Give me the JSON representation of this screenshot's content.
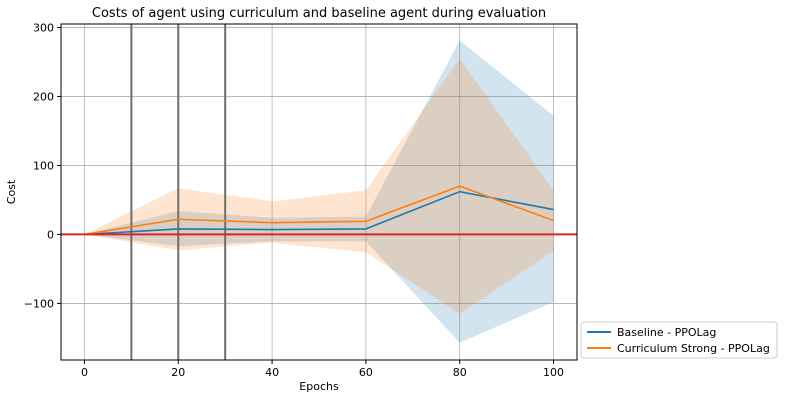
{
  "chart_data": {
    "type": "line",
    "title": "Costs of agent using curriculum and baseline agent during evaluation",
    "xlabel": "Epochs",
    "ylabel": "Cost",
    "xlim": [
      -5,
      105
    ],
    "ylim": [
      -182,
      305
    ],
    "xticks": [
      0,
      20,
      40,
      60,
      80,
      100
    ],
    "yticks": [
      -100,
      0,
      100,
      200,
      300
    ],
    "grid": true,
    "legend_position": "bottom-right-outside",
    "vertical_lines": [
      10,
      20,
      30
    ],
    "threshold_line": {
      "y": 0,
      "color": "#d62728"
    },
    "x": [
      0,
      20,
      40,
      60,
      80,
      100
    ],
    "series": [
      {
        "name": "Baseline - PPOLag",
        "color": "#1f77b4",
        "values": [
          0,
          8,
          7,
          8,
          62,
          36
        ],
        "lower": [
          0,
          -17,
          -10,
          -10,
          -157,
          -98
        ],
        "upper": [
          0,
          34,
          24,
          26,
          281,
          172
        ]
      },
      {
        "name": "Curriculum Strong - PPOLag",
        "color": "#ff7f0e",
        "values": [
          0,
          22,
          17,
          19,
          70,
          20
        ],
        "lower": [
          0,
          -23,
          -12,
          -26,
          -115,
          -24
        ],
        "upper": [
          0,
          67,
          48,
          64,
          255,
          64
        ]
      }
    ]
  }
}
